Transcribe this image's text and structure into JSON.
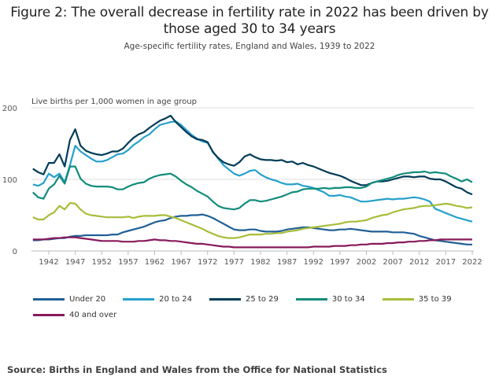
{
  "chart_data": {
    "type": "line",
    "title": "Figure 2: The overall decrease in fertility rate in 2022 has been driven by those aged 30 to 34 years",
    "subtitle": "Age-specific fertility rates, England and Wales, 1939 to 2022",
    "ylabel": "Live births per 1,000 women in age group",
    "xlabel": "",
    "ylim": [
      0,
      200
    ],
    "yticks": [
      0,
      100,
      200
    ],
    "xlim": [
      1939,
      2022
    ],
    "xticks": [
      1942,
      1947,
      1952,
      1957,
      1962,
      1967,
      1972,
      1977,
      1982,
      1987,
      1992,
      1997,
      2002,
      2007,
      2012,
      2017,
      2022
    ],
    "grid": true,
    "legend_position": "bottom",
    "x": [
      1939,
      1940,
      1941,
      1942,
      1943,
      1944,
      1945,
      1946,
      1947,
      1948,
      1949,
      1950,
      1951,
      1952,
      1953,
      1954,
      1955,
      1956,
      1957,
      1958,
      1959,
      1960,
      1961,
      1962,
      1963,
      1964,
      1965,
      1966,
      1967,
      1968,
      1969,
      1970,
      1971,
      1972,
      1973,
      1974,
      1975,
      1976,
      1977,
      1978,
      1979,
      1980,
      1981,
      1982,
      1983,
      1984,
      1985,
      1986,
      1987,
      1988,
      1989,
      1990,
      1991,
      1992,
      1993,
      1994,
      1995,
      1996,
      1997,
      1998,
      1999,
      2000,
      2001,
      2002,
      2003,
      2004,
      2005,
      2006,
      2007,
      2008,
      2009,
      2010,
      2011,
      2012,
      2013,
      2014,
      2015,
      2016,
      2017,
      2018,
      2019,
      2020,
      2021,
      2022
    ],
    "series": [
      {
        "name": "Under 20",
        "color": "#206095",
        "values": [
          15,
          15,
          16,
          16,
          17,
          18,
          18,
          20,
          21,
          21,
          22,
          22,
          22,
          22,
          22,
          23,
          23,
          26,
          28,
          30,
          32,
          34,
          37,
          40,
          42,
          43,
          46,
          48,
          49,
          49,
          50,
          50,
          51,
          49,
          46,
          42,
          38,
          34,
          30,
          29,
          29,
          30,
          30,
          28,
          27,
          27,
          27,
          28,
          30,
          31,
          32,
          33,
          33,
          32,
          31,
          30,
          29,
          29,
          30,
          30,
          31,
          30,
          29,
          28,
          27,
          27,
          27,
          27,
          26,
          26,
          26,
          25,
          24,
          21,
          19,
          17,
          15,
          14,
          13,
          12,
          11,
          10,
          9,
          9
        ]
      },
      {
        "name": "20 to 24",
        "color": "#27a0cc",
        "values": [
          93,
          91,
          95,
          108,
          103,
          108,
          96,
          120,
          147,
          139,
          134,
          129,
          125,
          125,
          127,
          131,
          135,
          136,
          141,
          148,
          153,
          159,
          163,
          170,
          176,
          178,
          180,
          181,
          176,
          169,
          162,
          157,
          153,
          151,
          139,
          129,
          120,
          114,
          108,
          105,
          108,
          112,
          113,
          107,
          103,
          100,
          98,
          95,
          93,
          93,
          94,
          91,
          90,
          88,
          85,
          82,
          77,
          77,
          78,
          76,
          75,
          72,
          69,
          69,
          70,
          71,
          72,
          73,
          72,
          73,
          73,
          74,
          75,
          74,
          72,
          69,
          59,
          56,
          53,
          50,
          47,
          45,
          43,
          41
        ]
      },
      {
        "name": "25 to 29",
        "color": "#003c57",
        "values": [
          115,
          110,
          107,
          123,
          123,
          135,
          118,
          155,
          170,
          147,
          140,
          137,
          135,
          134,
          136,
          139,
          139,
          143,
          151,
          158,
          163,
          166,
          172,
          177,
          182,
          185,
          189,
          180,
          173,
          166,
          160,
          156,
          155,
          152,
          138,
          130,
          124,
          121,
          119,
          124,
          132,
          135,
          131,
          128,
          127,
          127,
          126,
          127,
          124,
          125,
          121,
          123,
          120,
          118,
          115,
          112,
          109,
          107,
          105,
          102,
          98,
          95,
          92,
          92,
          95,
          97,
          97,
          98,
          100,
          102,
          104,
          104,
          103,
          104,
          104,
          101,
          100,
          100,
          97,
          93,
          89,
          87,
          82,
          79
        ]
      },
      {
        "name": "30 to 34",
        "color": "#118c7b",
        "values": [
          82,
          75,
          73,
          87,
          93,
          105,
          94,
          118,
          118,
          101,
          94,
          91,
          90,
          90,
          90,
          89,
          86,
          86,
          90,
          93,
          95,
          96,
          101,
          104,
          106,
          107,
          108,
          104,
          98,
          93,
          89,
          84,
          80,
          76,
          69,
          63,
          60,
          59,
          58,
          60,
          66,
          71,
          71,
          69,
          70,
          72,
          74,
          76,
          79,
          82,
          83,
          86,
          87,
          87,
          87,
          88,
          87,
          88,
          88,
          89,
          89,
          88,
          88,
          90,
          95,
          97,
          99,
          101,
          103,
          106,
          108,
          109,
          110,
          110,
          111,
          109,
          110,
          109,
          108,
          104,
          101,
          97,
          100,
          96
        ]
      },
      {
        "name": "35 to 39",
        "color": "#a8bd3a",
        "values": [
          47,
          44,
          44,
          50,
          54,
          63,
          58,
          67,
          66,
          58,
          52,
          50,
          49,
          48,
          47,
          47,
          47,
          47,
          48,
          46,
          48,
          49,
          49,
          49,
          50,
          50,
          48,
          46,
          43,
          40,
          37,
          34,
          31,
          27,
          24,
          21,
          19,
          18,
          18,
          19,
          21,
          23,
          23,
          23,
          24,
          24,
          25,
          25,
          27,
          28,
          29,
          31,
          32,
          33,
          34,
          35,
          36,
          37,
          38,
          40,
          41,
          41,
          42,
          43,
          46,
          48,
          50,
          51,
          54,
          56,
          58,
          59,
          60,
          62,
          63,
          63,
          64,
          65,
          66,
          65,
          63,
          62,
          60,
          61
        ]
      },
      {
        "name": "40 and over",
        "color": "#871a5b",
        "values": [
          16,
          16,
          16,
          17,
          18,
          18,
          19,
          19,
          19,
          18,
          17,
          16,
          15,
          14,
          14,
          14,
          14,
          13,
          13,
          13,
          14,
          14,
          15,
          16,
          15,
          15,
          14,
          14,
          13,
          12,
          11,
          10,
          10,
          9,
          8,
          7,
          6,
          6,
          5,
          5,
          5,
          5,
          5,
          5,
          5,
          5,
          5,
          5,
          5,
          5,
          5,
          5,
          5,
          6,
          6,
          6,
          6,
          7,
          7,
          7,
          8,
          8,
          9,
          9,
          10,
          10,
          10,
          11,
          11,
          12,
          12,
          13,
          13,
          14,
          14,
          15,
          15,
          16,
          16,
          16,
          16,
          16,
          16,
          16
        ]
      }
    ]
  },
  "source_text": "Source: Births in England and Wales from the Office for National Statistics"
}
